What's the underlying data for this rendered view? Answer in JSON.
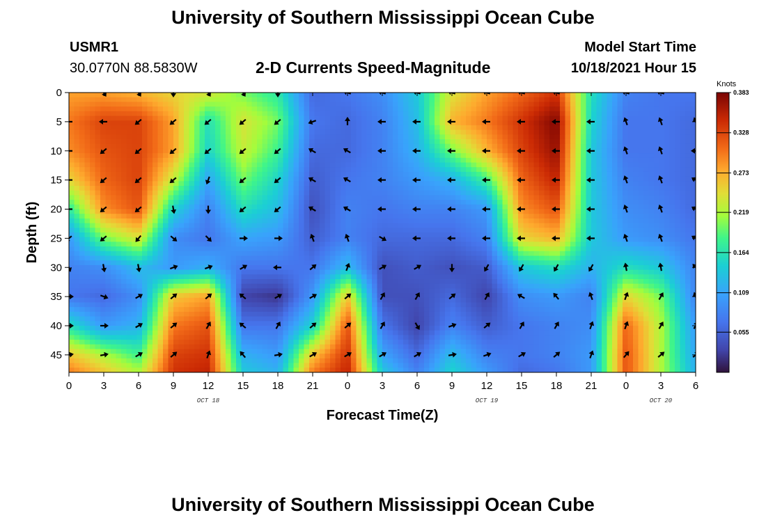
{
  "header": {
    "title": "University of Southern Mississippi Ocean Cube",
    "station_id": "USMR1",
    "coords": "30.0770N  88.5830W",
    "center_title": "2-D Currents Speed-Magnitude",
    "model_label": "Model Start Time",
    "model_time": "10/18/2021 Hour 15"
  },
  "footer": {
    "title": "University of Southern Mississippi Ocean Cube"
  },
  "chart_data": {
    "type": "heatmap",
    "title": "2-D Currents Speed-Magnitude",
    "xlabel": "Forecast Time(Z)",
    "ylabel": "Depth (ft)",
    "xlim": [
      0,
      54
    ],
    "ylim": [
      0,
      48
    ],
    "x_ticks": [
      0,
      3,
      6,
      9,
      12,
      15,
      18,
      21,
      24,
      27,
      30,
      33,
      36,
      39,
      42,
      45,
      48,
      51,
      54
    ],
    "x_tick_labels": [
      "0",
      "3",
      "6",
      "9",
      "12",
      "15",
      "18",
      "21",
      "0",
      "3",
      "6",
      "9",
      "12",
      "15",
      "18",
      "21",
      "0",
      "3",
      "6"
    ],
    "y_ticks": [
      0,
      5,
      10,
      15,
      20,
      25,
      30,
      35,
      40,
      45
    ],
    "y_tick_labels": [
      "0",
      "5",
      "10",
      "15",
      "20",
      "25",
      "30",
      "35",
      "40",
      "45"
    ],
    "date_labels": [
      {
        "x": 12,
        "text": "OCT 18"
      },
      {
        "x": 36,
        "text": "OCT 19"
      },
      {
        "x": 51,
        "text": "OCT 20"
      }
    ],
    "colorbar": {
      "unit": "Knots",
      "min": 0.0,
      "max": 0.383,
      "ticks": [
        0.383,
        0.328,
        0.273,
        0.219,
        0.164,
        0.109,
        0.055
      ],
      "tick_labels": [
        "0.383",
        "0.328",
        "0.273",
        "0.219",
        "0.164",
        "0.109",
        "0.055"
      ]
    },
    "columns_x": [
      0,
      3,
      6,
      9,
      12,
      15,
      18,
      21,
      24,
      27,
      30,
      33,
      36,
      39,
      42,
      45,
      48,
      51,
      54
    ],
    "rows_depth": [
      0,
      5,
      10,
      15,
      20,
      25,
      30,
      35,
      40,
      45,
      48
    ],
    "speed": [
      [
        0.28,
        0.28,
        0.27,
        0.25,
        0.24,
        0.2,
        0.17,
        0.06,
        0.07,
        0.09,
        0.14,
        0.24,
        0.28,
        0.31,
        0.34,
        0.16,
        0.08,
        0.07,
        0.07
      ],
      [
        0.3,
        0.33,
        0.33,
        0.28,
        0.16,
        0.24,
        0.2,
        0.07,
        0.06,
        0.08,
        0.13,
        0.27,
        0.3,
        0.34,
        0.38,
        0.15,
        0.07,
        0.07,
        0.06
      ],
      [
        0.29,
        0.32,
        0.33,
        0.28,
        0.15,
        0.23,
        0.18,
        0.06,
        0.06,
        0.08,
        0.12,
        0.2,
        0.27,
        0.33,
        0.37,
        0.14,
        0.07,
        0.07,
        0.06
      ],
      [
        0.25,
        0.31,
        0.33,
        0.23,
        0.11,
        0.2,
        0.15,
        0.05,
        0.07,
        0.08,
        0.1,
        0.12,
        0.18,
        0.31,
        0.35,
        0.14,
        0.08,
        0.07,
        0.06
      ],
      [
        0.17,
        0.29,
        0.32,
        0.15,
        0.08,
        0.16,
        0.13,
        0.04,
        0.08,
        0.07,
        0.08,
        0.08,
        0.1,
        0.29,
        0.32,
        0.14,
        0.09,
        0.08,
        0.06
      ],
      [
        0.1,
        0.2,
        0.24,
        0.09,
        0.07,
        0.11,
        0.1,
        0.05,
        0.08,
        0.06,
        0.06,
        0.06,
        0.08,
        0.25,
        0.27,
        0.14,
        0.1,
        0.09,
        0.07
      ],
      [
        0.08,
        0.09,
        0.13,
        0.1,
        0.12,
        0.07,
        0.07,
        0.07,
        0.13,
        0.04,
        0.05,
        0.04,
        0.05,
        0.14,
        0.16,
        0.12,
        0.16,
        0.14,
        0.08
      ],
      [
        0.07,
        0.06,
        0.09,
        0.26,
        0.28,
        0.03,
        0.02,
        0.1,
        0.26,
        0.04,
        0.04,
        0.06,
        0.03,
        0.09,
        0.1,
        0.08,
        0.25,
        0.2,
        0.08
      ],
      [
        0.16,
        0.1,
        0.12,
        0.3,
        0.32,
        0.07,
        0.07,
        0.15,
        0.32,
        0.07,
        0.03,
        0.08,
        0.05,
        0.07,
        0.08,
        0.09,
        0.31,
        0.22,
        0.1
      ],
      [
        0.26,
        0.22,
        0.18,
        0.33,
        0.34,
        0.12,
        0.1,
        0.26,
        0.34,
        0.11,
        0.06,
        0.13,
        0.08,
        0.07,
        0.08,
        0.1,
        0.32,
        0.22,
        0.11
      ],
      [
        0.3,
        0.26,
        0.22,
        0.34,
        0.35,
        0.14,
        0.12,
        0.3,
        0.35,
        0.14,
        0.08,
        0.15,
        0.1,
        0.06,
        0.07,
        0.1,
        0.32,
        0.22,
        0.12
      ]
    ],
    "vector_directions_deg": [
      [
        null,
        60,
        60,
        90,
        60,
        60,
        90,
        null,
        200,
        200,
        200,
        200,
        200,
        200,
        200,
        null,
        200,
        200,
        null
      ],
      [
        180,
        180,
        140,
        140,
        140,
        140,
        140,
        160,
        270,
        180,
        180,
        180,
        180,
        180,
        180,
        180,
        250,
        250,
        250
      ],
      [
        180,
        140,
        140,
        140,
        140,
        140,
        140,
        210,
        210,
        180,
        180,
        180,
        180,
        180,
        180,
        180,
        250,
        250,
        180
      ],
      [
        180,
        140,
        140,
        140,
        110,
        140,
        140,
        210,
        210,
        180,
        180,
        180,
        180,
        180,
        180,
        180,
        250,
        250,
        210
      ],
      [
        180,
        140,
        140,
        80,
        90,
        140,
        140,
        210,
        210,
        180,
        180,
        180,
        180,
        180,
        180,
        180,
        250,
        250,
        210
      ],
      [
        140,
        140,
        130,
        40,
        45,
        0,
        0,
        250,
        250,
        30,
        180,
        180,
        180,
        180,
        180,
        180,
        250,
        250,
        210
      ],
      [
        70,
        80,
        80,
        340,
        340,
        330,
        180,
        320,
        290,
        330,
        330,
        90,
        120,
        120,
        120,
        120,
        260,
        260,
        230
      ],
      [
        0,
        20,
        330,
        320,
        320,
        220,
        330,
        330,
        320,
        300,
        300,
        320,
        300,
        210,
        230,
        250,
        290,
        300,
        250
      ],
      [
        0,
        0,
        330,
        320,
        300,
        220,
        300,
        320,
        320,
        300,
        60,
        340,
        320,
        300,
        300,
        290,
        290,
        300,
        300
      ],
      [
        350,
        350,
        330,
        320,
        290,
        230,
        350,
        330,
        330,
        330,
        330,
        350,
        340,
        330,
        320,
        290,
        310,
        320,
        320
      ]
    ]
  }
}
